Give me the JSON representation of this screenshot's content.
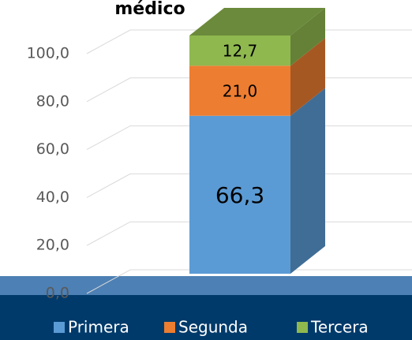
{
  "chart_data": {
    "type": "bar",
    "stacked": true,
    "three_d": true,
    "title": "médico",
    "categories": [
      null
    ],
    "series": [
      {
        "name": "Primera",
        "color": "#5b9bd5",
        "values": [
          66.3
        ],
        "value_labels": [
          "66,3"
        ]
      },
      {
        "name": "Segunda",
        "color": "#ed7d31",
        "values": [
          21.0
        ],
        "value_labels": [
          "21,0"
        ]
      },
      {
        "name": "Tercera",
        "color": "#8fb84f",
        "values": [
          12.7
        ],
        "value_labels": [
          "12,7"
        ]
      }
    ],
    "ylim": [
      0,
      100
    ],
    "yticks": [
      {
        "value": 0,
        "label": "0,0"
      },
      {
        "value": 20,
        "label": "20,0"
      },
      {
        "value": 40,
        "label": "40,0"
      },
      {
        "value": 60,
        "label": "60,0"
      },
      {
        "value": 80,
        "label": "80,0"
      },
      {
        "value": 100,
        "label": "100,0"
      }
    ],
    "grid": true,
    "legend": "bottom"
  }
}
